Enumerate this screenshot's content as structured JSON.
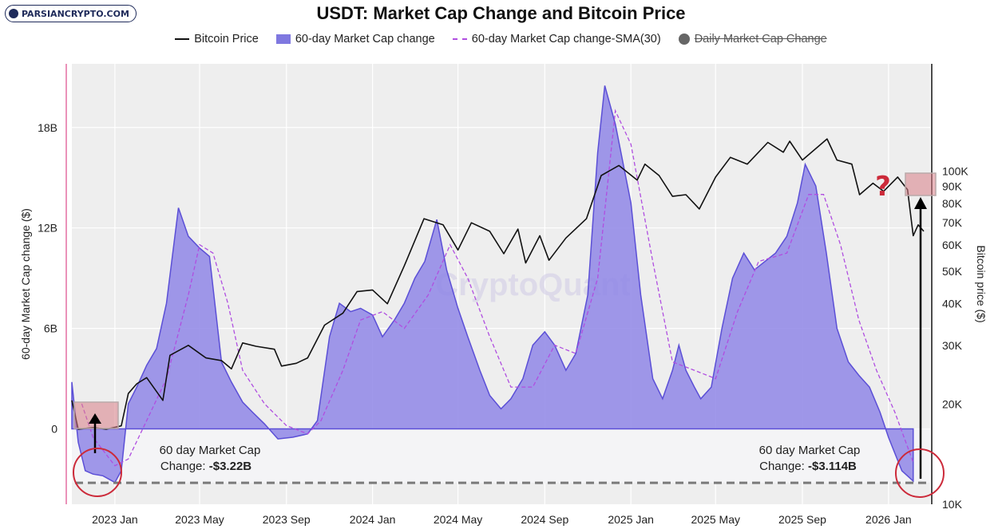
{
  "header": {
    "logo_text": "PARSIANCRYPTO.COM",
    "title": "USDT: Market Cap Change and Bitcoin Price",
    "watermark": "CryptoQuant"
  },
  "legend": [
    {
      "label": "Bitcoin Price",
      "kind": "line",
      "strike": false
    },
    {
      "label": "60-day Market Cap change",
      "kind": "area",
      "strike": false
    },
    {
      "label": "60-day Market Cap change-SMA(30)",
      "kind": "dash",
      "strike": false
    },
    {
      "label": "Daily Market Cap Change",
      "kind": "circle",
      "strike": true
    }
  ],
  "annotations": {
    "left_line1": "60 day Market Cap",
    "left_line2_prefix": "Change: ",
    "left_line2_value": "-$3.22B",
    "right_line1": "60 day Market Cap",
    "right_line2_prefix": "Change: ",
    "right_line2_value": "-$3.114B",
    "question_mark": "?"
  },
  "colors": {
    "area_fill": "#8f86e6",
    "area_stroke": "#5b4fd6",
    "sma": "#b04ee0",
    "btc": "#111111",
    "plot_bg": "#eeeeee",
    "highlight_red": "#d97d86",
    "circle_red": "#cc2a3a"
  },
  "chart_data": {
    "type": "area",
    "xlabel": "",
    "ylabel": "60-day Market Cap change ($)",
    "y2label": "Bitcoin price ($)",
    "x_ticks": [
      "2023 Jan",
      "2023 May",
      "2023 Sep",
      "2024 Jan",
      "2024 May",
      "2024 Sep",
      "2025 Jan",
      "2025 May",
      "2025 Sep",
      "2026 Jan"
    ],
    "x_range": [
      "2022-11-01",
      "2026-03-01"
    ],
    "y_ticks": [
      {
        "label": "0",
        "value": 0
      },
      {
        "label": "6B",
        "value": 6
      },
      {
        "label": "12B",
        "value": 12
      },
      {
        "label": "18B",
        "value": 18
      }
    ],
    "ylim": [
      -4.5,
      21.8
    ],
    "y2_ticks": [
      {
        "label": "10K",
        "value": 10000
      },
      {
        "label": "20K",
        "value": 20000
      },
      {
        "label": "30K",
        "value": 30000
      },
      {
        "label": "40K",
        "value": 40000
      },
      {
        "label": "50K",
        "value": 50000
      },
      {
        "label": "60K",
        "value": 60000
      },
      {
        "label": "70K",
        "value": 70000
      },
      {
        "label": "80K",
        "value": 80000
      },
      {
        "label": "90K",
        "value": 90000
      },
      {
        "label": "100K",
        "value": 100000
      }
    ],
    "y2lim": [
      10000,
      210000
    ],
    "y2_scale": "log",
    "grid": true,
    "reference_line": -3.22,
    "series": [
      {
        "name": "60-day Market Cap change",
        "kind": "area",
        "points": [
          [
            "2022-11-01",
            2.8
          ],
          [
            "2022-11-10",
            -0.8
          ],
          [
            "2022-11-20",
            -2.5
          ],
          [
            "2022-12-01",
            -2.7
          ],
          [
            "2022-12-15",
            -2.8
          ],
          [
            "2023-01-01",
            -3.2
          ],
          [
            "2023-01-10",
            -2.5
          ],
          [
            "2023-01-20",
            1.5
          ],
          [
            "2023-02-01",
            2.5
          ],
          [
            "2023-02-15",
            3.8
          ],
          [
            "2023-03-01",
            4.8
          ],
          [
            "2023-03-15",
            7.5
          ],
          [
            "2023-04-01",
            13.2
          ],
          [
            "2023-04-15",
            11.5
          ],
          [
            "2023-05-01",
            10.8
          ],
          [
            "2023-05-15",
            10.3
          ],
          [
            "2023-06-01",
            4.0
          ],
          [
            "2023-06-15",
            2.8
          ],
          [
            "2023-07-01",
            1.6
          ],
          [
            "2023-07-15",
            1.0
          ],
          [
            "2023-08-01",
            0.3
          ],
          [
            "2023-08-20",
            -0.6
          ],
          [
            "2023-09-10",
            -0.5
          ],
          [
            "2023-10-01",
            -0.3
          ],
          [
            "2023-10-15",
            0.5
          ],
          [
            "2023-11-01",
            5.5
          ],
          [
            "2023-11-15",
            7.5
          ],
          [
            "2023-12-01",
            7.0
          ],
          [
            "2023-12-15",
            7.2
          ],
          [
            "2024-01-01",
            6.8
          ],
          [
            "2024-01-15",
            5.5
          ],
          [
            "2024-02-01",
            6.5
          ],
          [
            "2024-02-15",
            7.5
          ],
          [
            "2024-03-01",
            9.0
          ],
          [
            "2024-03-15",
            10.0
          ],
          [
            "2024-04-01",
            12.5
          ],
          [
            "2024-04-15",
            9.5
          ],
          [
            "2024-05-01",
            7.2
          ],
          [
            "2024-05-15",
            5.5
          ],
          [
            "2024-06-01",
            3.5
          ],
          [
            "2024-06-15",
            2.0
          ],
          [
            "2024-07-01",
            1.2
          ],
          [
            "2024-07-15",
            1.8
          ],
          [
            "2024-08-01",
            3.0
          ],
          [
            "2024-08-15",
            5.0
          ],
          [
            "2024-09-01",
            5.8
          ],
          [
            "2024-09-15",
            5.0
          ],
          [
            "2024-10-01",
            3.5
          ],
          [
            "2024-10-15",
            4.5
          ],
          [
            "2024-11-01",
            8.0
          ],
          [
            "2024-11-15",
            16.5
          ],
          [
            "2024-11-25",
            20.5
          ],
          [
            "2024-12-10",
            18.2
          ],
          [
            "2025-01-01",
            13.5
          ],
          [
            "2025-01-15",
            8.0
          ],
          [
            "2025-02-01",
            3.0
          ],
          [
            "2025-02-15",
            1.8
          ],
          [
            "2025-03-01",
            3.5
          ],
          [
            "2025-03-10",
            5.0
          ],
          [
            "2025-03-20",
            3.5
          ],
          [
            "2025-04-01",
            2.5
          ],
          [
            "2025-04-10",
            1.8
          ],
          [
            "2025-04-25",
            2.5
          ],
          [
            "2025-05-10",
            6.0
          ],
          [
            "2025-05-25",
            9.0
          ],
          [
            "2025-06-10",
            10.5
          ],
          [
            "2025-06-25",
            9.5
          ],
          [
            "2025-07-10",
            10.0
          ],
          [
            "2025-07-25",
            10.5
          ],
          [
            "2025-08-10",
            11.5
          ],
          [
            "2025-08-25",
            13.5
          ],
          [
            "2025-09-05",
            15.8
          ],
          [
            "2025-09-20",
            14.5
          ],
          [
            "2025-10-05",
            10.5
          ],
          [
            "2025-10-20",
            6.0
          ],
          [
            "2025-11-05",
            4.0
          ],
          [
            "2025-11-20",
            3.2
          ],
          [
            "2025-12-05",
            2.5
          ],
          [
            "2025-12-20",
            1.0
          ],
          [
            "2026-01-01",
            -0.5
          ],
          [
            "2026-01-20",
            -2.5
          ],
          [
            "2026-02-05",
            -3.114
          ]
        ]
      },
      {
        "name": "60-day Market Cap change-SMA(30)",
        "kind": "dash",
        "points": [
          [
            "2022-11-15",
            1.5
          ],
          [
            "2022-12-01",
            -0.5
          ],
          [
            "2023-01-01",
            -2.2
          ],
          [
            "2023-01-20",
            -1.8
          ],
          [
            "2023-02-15",
            0.5
          ],
          [
            "2023-03-15",
            3.0
          ],
          [
            "2023-04-15",
            8.0
          ],
          [
            "2023-05-01",
            11.0
          ],
          [
            "2023-05-20",
            10.5
          ],
          [
            "2023-06-10",
            7.5
          ],
          [
            "2023-07-01",
            3.5
          ],
          [
            "2023-08-01",
            1.5
          ],
          [
            "2023-09-01",
            0.2
          ],
          [
            "2023-10-01",
            -0.3
          ],
          [
            "2023-10-20",
            0.5
          ],
          [
            "2023-11-20",
            3.5
          ],
          [
            "2023-12-15",
            6.5
          ],
          [
            "2024-01-15",
            7.0
          ],
          [
            "2024-02-15",
            6.0
          ],
          [
            "2024-03-20",
            8.0
          ],
          [
            "2024-04-20",
            11.0
          ],
          [
            "2024-05-15",
            9.0
          ],
          [
            "2024-06-15",
            5.5
          ],
          [
            "2024-07-15",
            2.5
          ],
          [
            "2024-08-15",
            2.5
          ],
          [
            "2024-09-15",
            5.0
          ],
          [
            "2024-10-15",
            4.5
          ],
          [
            "2024-11-15",
            9.0
          ],
          [
            "2024-12-10",
            19.0
          ],
          [
            "2025-01-01",
            17.0
          ],
          [
            "2025-02-01",
            10.0
          ],
          [
            "2025-03-01",
            4.0
          ],
          [
            "2025-04-01",
            3.5
          ],
          [
            "2025-05-01",
            3.0
          ],
          [
            "2025-06-01",
            7.0
          ],
          [
            "2025-07-01",
            10.0
          ],
          [
            "2025-08-10",
            10.5
          ],
          [
            "2025-09-10",
            14.0
          ],
          [
            "2025-10-01",
            14.0
          ],
          [
            "2025-10-25",
            11.0
          ],
          [
            "2025-11-20",
            6.5
          ],
          [
            "2025-12-15",
            3.5
          ],
          [
            "2026-01-10",
            1.0
          ],
          [
            "2026-02-05",
            -2.0
          ]
        ]
      },
      {
        "name": "Bitcoin Price",
        "kind": "line",
        "axis": "right",
        "points": [
          [
            "2022-11-01",
            20500
          ],
          [
            "2022-11-10",
            16800
          ],
          [
            "2022-12-01",
            17000
          ],
          [
            "2022-12-20",
            16800
          ],
          [
            "2023-01-10",
            17200
          ],
          [
            "2023-01-20",
            21500
          ],
          [
            "2023-02-01",
            23000
          ],
          [
            "2023-02-15",
            24000
          ],
          [
            "2023-03-10",
            20500
          ],
          [
            "2023-03-20",
            28000
          ],
          [
            "2023-04-15",
            30000
          ],
          [
            "2023-05-10",
            27500
          ],
          [
            "2023-06-01",
            27000
          ],
          [
            "2023-06-15",
            25500
          ],
          [
            "2023-07-01",
            30500
          ],
          [
            "2023-07-20",
            29800
          ],
          [
            "2023-08-15",
            29200
          ],
          [
            "2023-08-25",
            26000
          ],
          [
            "2023-09-15",
            26500
          ],
          [
            "2023-10-01",
            27500
          ],
          [
            "2023-10-25",
            34500
          ],
          [
            "2023-11-20",
            37500
          ],
          [
            "2023-12-10",
            43500
          ],
          [
            "2024-01-01",
            44000
          ],
          [
            "2024-01-22",
            40000
          ],
          [
            "2024-02-15",
            52000
          ],
          [
            "2024-03-14",
            72000
          ],
          [
            "2024-04-10",
            69000
          ],
          [
            "2024-05-01",
            58000
          ],
          [
            "2024-05-20",
            70000
          ],
          [
            "2024-06-15",
            66000
          ],
          [
            "2024-07-05",
            56500
          ],
          [
            "2024-07-25",
            67000
          ],
          [
            "2024-08-05",
            53000
          ],
          [
            "2024-08-25",
            64000
          ],
          [
            "2024-09-07",
            54000
          ],
          [
            "2024-10-01",
            63000
          ],
          [
            "2024-10-30",
            72000
          ],
          [
            "2024-11-20",
            97000
          ],
          [
            "2024-12-15",
            104000
          ],
          [
            "2025-01-10",
            94000
          ],
          [
            "2025-01-21",
            105000
          ],
          [
            "2025-02-10",
            97000
          ],
          [
            "2025-03-01",
            84000
          ],
          [
            "2025-03-20",
            85000
          ],
          [
            "2025-04-08",
            77000
          ],
          [
            "2025-05-01",
            96000
          ],
          [
            "2025-05-22",
            110000
          ],
          [
            "2025-06-15",
            105000
          ],
          [
            "2025-07-14",
            122000
          ],
          [
            "2025-08-05",
            114000
          ],
          [
            "2025-08-14",
            123000
          ],
          [
            "2025-09-01",
            108000
          ],
          [
            "2025-10-06",
            125000
          ],
          [
            "2025-10-20",
            108000
          ],
          [
            "2025-11-10",
            105000
          ],
          [
            "2025-11-21",
            85000
          ],
          [
            "2025-12-10",
            92000
          ],
          [
            "2025-12-25",
            87000
          ],
          [
            "2026-01-14",
            96000
          ],
          [
            "2026-01-28",
            88000
          ],
          [
            "2026-02-05",
            64000
          ],
          [
            "2026-02-12",
            69000
          ],
          [
            "2026-02-20",
            66000
          ]
        ]
      }
    ]
  }
}
